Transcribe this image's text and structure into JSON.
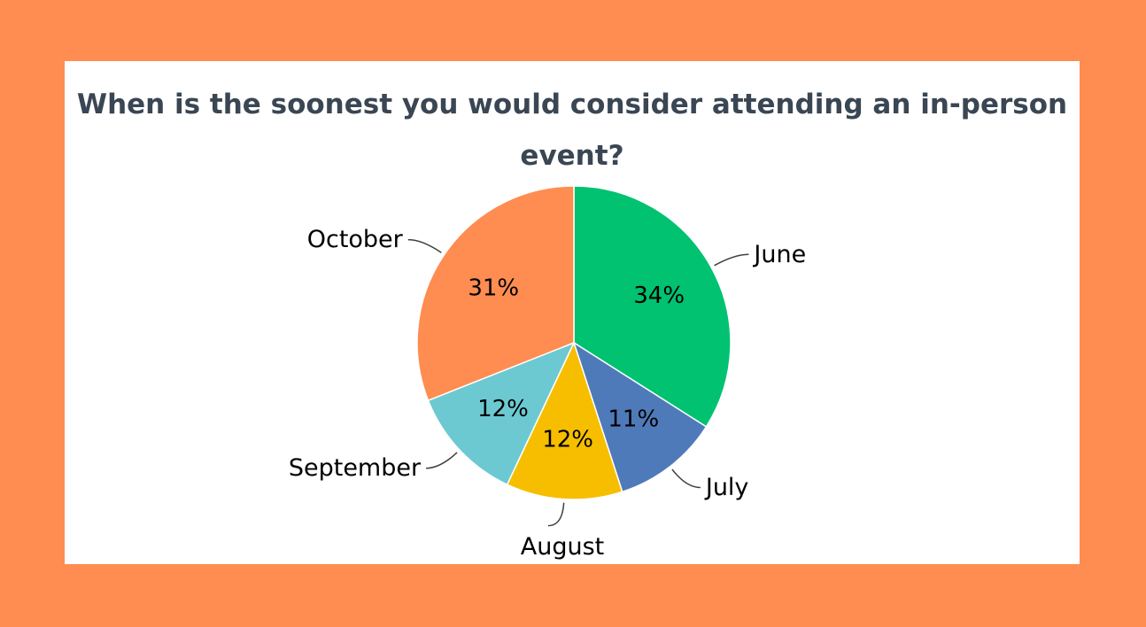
{
  "chart_data": {
    "type": "pie",
    "title": "When is the soonest you would consider attending an in-person event?",
    "categories": [
      "June",
      "July",
      "August",
      "September",
      "October"
    ],
    "values": [
      34,
      11,
      12,
      12,
      31
    ],
    "data_labels": [
      "34%",
      "11%",
      "12%",
      "12%",
      "31%"
    ],
    "colors": [
      "#00C271",
      "#4F7AB9",
      "#F7BE00",
      "#6CC9D1",
      "#FF8C50"
    ],
    "start_angle_deg": 0,
    "direction": "clockwise",
    "legend": "none"
  },
  "page": {
    "background_color": "#FF8C50",
    "card_color": "#FFFFFF"
  }
}
